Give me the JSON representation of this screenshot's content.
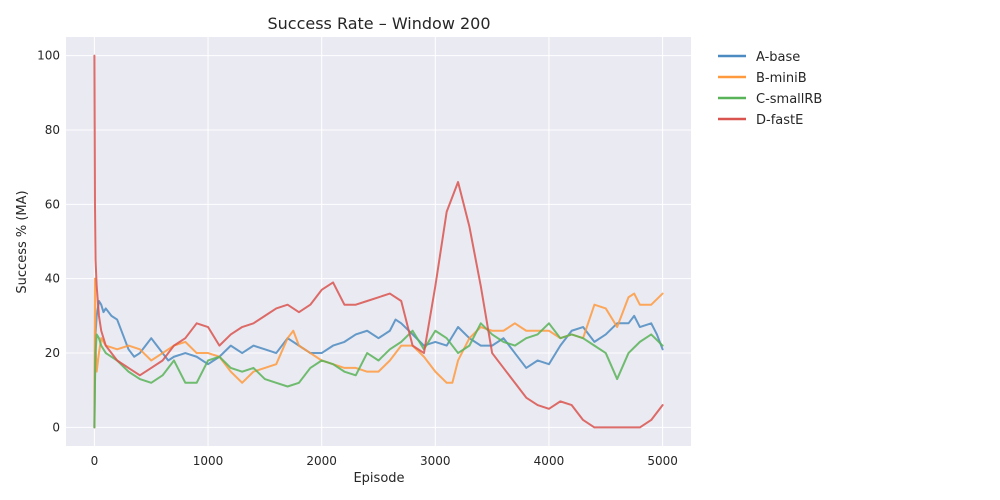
{
  "chart_data": {
    "type": "line",
    "title": "Success Rate – Window 200",
    "xlabel": "Episode",
    "ylabel": "Success % (MA)",
    "xlim": [
      -250,
      5250
    ],
    "ylim": [
      -5,
      105
    ],
    "xticks": [
      0,
      1000,
      2000,
      3000,
      4000,
      5000
    ],
    "yticks": [
      0,
      20,
      40,
      60,
      80,
      100
    ],
    "grid": true,
    "legend_position": "outside-right",
    "series": [
      {
        "name": "A-base",
        "color": "#4c8bc1",
        "points": [
          [
            0,
            0
          ],
          [
            5,
            18
          ],
          [
            10,
            25
          ],
          [
            20,
            30
          ],
          [
            40,
            34
          ],
          [
            60,
            33
          ],
          [
            80,
            31
          ],
          [
            100,
            32
          ],
          [
            150,
            30
          ],
          [
            200,
            29
          ],
          [
            250,
            25
          ],
          [
            300,
            21
          ],
          [
            350,
            19
          ],
          [
            400,
            20
          ],
          [
            450,
            22
          ],
          [
            500,
            24
          ],
          [
            550,
            22
          ],
          [
            600,
            20
          ],
          [
            650,
            18
          ],
          [
            700,
            19
          ],
          [
            800,
            20
          ],
          [
            900,
            19
          ],
          [
            1000,
            17
          ],
          [
            1100,
            19
          ],
          [
            1200,
            22
          ],
          [
            1300,
            20
          ],
          [
            1400,
            22
          ],
          [
            1500,
            21
          ],
          [
            1600,
            20
          ],
          [
            1700,
            24
          ],
          [
            1800,
            22
          ],
          [
            1900,
            20
          ],
          [
            2000,
            20
          ],
          [
            2100,
            22
          ],
          [
            2200,
            23
          ],
          [
            2300,
            25
          ],
          [
            2400,
            26
          ],
          [
            2500,
            24
          ],
          [
            2600,
            26
          ],
          [
            2650,
            29
          ],
          [
            2700,
            28
          ],
          [
            2800,
            25
          ],
          [
            2900,
            22
          ],
          [
            3000,
            23
          ],
          [
            3100,
            22
          ],
          [
            3200,
            27
          ],
          [
            3300,
            24
          ],
          [
            3400,
            22
          ],
          [
            3500,
            22
          ],
          [
            3600,
            24
          ],
          [
            3700,
            20
          ],
          [
            3800,
            16
          ],
          [
            3900,
            18
          ],
          [
            4000,
            17
          ],
          [
            4100,
            22
          ],
          [
            4200,
            26
          ],
          [
            4300,
            27
          ],
          [
            4400,
            23
          ],
          [
            4500,
            25
          ],
          [
            4600,
            28
          ],
          [
            4700,
            28
          ],
          [
            4750,
            30
          ],
          [
            4800,
            27
          ],
          [
            4900,
            28
          ],
          [
            4950,
            25
          ],
          [
            5000,
            21
          ]
        ]
      },
      {
        "name": "B-miniB",
        "color": "#ff9a3e",
        "points": [
          [
            0,
            0
          ],
          [
            5,
            40
          ],
          [
            10,
            22
          ],
          [
            20,
            15
          ],
          [
            40,
            20
          ],
          [
            60,
            24
          ],
          [
            100,
            22
          ],
          [
            200,
            21
          ],
          [
            300,
            22
          ],
          [
            400,
            21
          ],
          [
            500,
            18
          ],
          [
            600,
            20
          ],
          [
            700,
            22
          ],
          [
            800,
            23
          ],
          [
            900,
            20
          ],
          [
            1000,
            20
          ],
          [
            1100,
            19
          ],
          [
            1200,
            15
          ],
          [
            1300,
            12
          ],
          [
            1400,
            15
          ],
          [
            1500,
            16
          ],
          [
            1600,
            17
          ],
          [
            1700,
            24
          ],
          [
            1750,
            26
          ],
          [
            1800,
            22
          ],
          [
            1900,
            20
          ],
          [
            2000,
            18
          ],
          [
            2100,
            17
          ],
          [
            2200,
            16
          ],
          [
            2300,
            16
          ],
          [
            2400,
            15
          ],
          [
            2500,
            15
          ],
          [
            2600,
            18
          ],
          [
            2700,
            22
          ],
          [
            2800,
            22
          ],
          [
            2900,
            19
          ],
          [
            3000,
            15
          ],
          [
            3100,
            12
          ],
          [
            3150,
            12
          ],
          [
            3200,
            18
          ],
          [
            3300,
            24
          ],
          [
            3400,
            27
          ],
          [
            3500,
            26
          ],
          [
            3600,
            26
          ],
          [
            3700,
            28
          ],
          [
            3800,
            26
          ],
          [
            3900,
            26
          ],
          [
            4000,
            26
          ],
          [
            4100,
            24
          ],
          [
            4200,
            25
          ],
          [
            4300,
            24
          ],
          [
            4400,
            33
          ],
          [
            4500,
            32
          ],
          [
            4600,
            27
          ],
          [
            4700,
            35
          ],
          [
            4750,
            36
          ],
          [
            4800,
            33
          ],
          [
            4900,
            33
          ],
          [
            5000,
            36
          ]
        ]
      },
      {
        "name": "C-smallRB",
        "color": "#59b358",
        "points": [
          [
            0,
            0
          ],
          [
            5,
            12
          ],
          [
            10,
            20
          ],
          [
            20,
            25
          ],
          [
            40,
            24
          ],
          [
            60,
            22
          ],
          [
            100,
            20
          ],
          [
            200,
            18
          ],
          [
            300,
            15
          ],
          [
            400,
            13
          ],
          [
            500,
            12
          ],
          [
            600,
            14
          ],
          [
            700,
            18
          ],
          [
            800,
            12
          ],
          [
            900,
            12
          ],
          [
            1000,
            18
          ],
          [
            1100,
            19
          ],
          [
            1200,
            16
          ],
          [
            1300,
            15
          ],
          [
            1400,
            16
          ],
          [
            1500,
            13
          ],
          [
            1600,
            12
          ],
          [
            1700,
            11
          ],
          [
            1800,
            12
          ],
          [
            1900,
            16
          ],
          [
            2000,
            18
          ],
          [
            2100,
            17
          ],
          [
            2200,
            15
          ],
          [
            2300,
            14
          ],
          [
            2400,
            20
          ],
          [
            2500,
            18
          ],
          [
            2600,
            21
          ],
          [
            2700,
            23
          ],
          [
            2800,
            26
          ],
          [
            2900,
            21
          ],
          [
            3000,
            26
          ],
          [
            3100,
            24
          ],
          [
            3200,
            20
          ],
          [
            3300,
            22
          ],
          [
            3400,
            28
          ],
          [
            3500,
            25
          ],
          [
            3600,
            23
          ],
          [
            3700,
            22
          ],
          [
            3800,
            24
          ],
          [
            3900,
            25
          ],
          [
            4000,
            28
          ],
          [
            4100,
            24
          ],
          [
            4200,
            25
          ],
          [
            4300,
            24
          ],
          [
            4400,
            22
          ],
          [
            4500,
            20
          ],
          [
            4600,
            13
          ],
          [
            4700,
            20
          ],
          [
            4800,
            23
          ],
          [
            4900,
            25
          ],
          [
            5000,
            22
          ]
        ]
      },
      {
        "name": "D-fastE",
        "color": "#d9534f",
        "points": [
          [
            0,
            100
          ],
          [
            5,
            60
          ],
          [
            10,
            45
          ],
          [
            20,
            38
          ],
          [
            40,
            30
          ],
          [
            60,
            26
          ],
          [
            100,
            22
          ],
          [
            200,
            18
          ],
          [
            300,
            16
          ],
          [
            400,
            14
          ],
          [
            500,
            16
          ],
          [
            600,
            18
          ],
          [
            700,
            22
          ],
          [
            800,
            24
          ],
          [
            900,
            28
          ],
          [
            1000,
            27
          ],
          [
            1100,
            22
          ],
          [
            1200,
            25
          ],
          [
            1300,
            27
          ],
          [
            1400,
            28
          ],
          [
            1500,
            30
          ],
          [
            1600,
            32
          ],
          [
            1700,
            33
          ],
          [
            1800,
            31
          ],
          [
            1900,
            33
          ],
          [
            2000,
            37
          ],
          [
            2100,
            39
          ],
          [
            2200,
            33
          ],
          [
            2300,
            33
          ],
          [
            2400,
            34
          ],
          [
            2500,
            35
          ],
          [
            2600,
            36
          ],
          [
            2700,
            34
          ],
          [
            2800,
            22
          ],
          [
            2900,
            20
          ],
          [
            3000,
            38
          ],
          [
            3100,
            58
          ],
          [
            3200,
            66
          ],
          [
            3300,
            54
          ],
          [
            3400,
            38
          ],
          [
            3500,
            20
          ],
          [
            3600,
            16
          ],
          [
            3700,
            12
          ],
          [
            3800,
            8
          ],
          [
            3900,
            6
          ],
          [
            4000,
            5
          ],
          [
            4100,
            7
          ],
          [
            4200,
            6
          ],
          [
            4300,
            2
          ],
          [
            4400,
            0
          ],
          [
            4500,
            0
          ],
          [
            4600,
            0
          ],
          [
            4700,
            0
          ],
          [
            4800,
            0
          ],
          [
            4900,
            2
          ],
          [
            5000,
            6
          ]
        ]
      }
    ]
  }
}
